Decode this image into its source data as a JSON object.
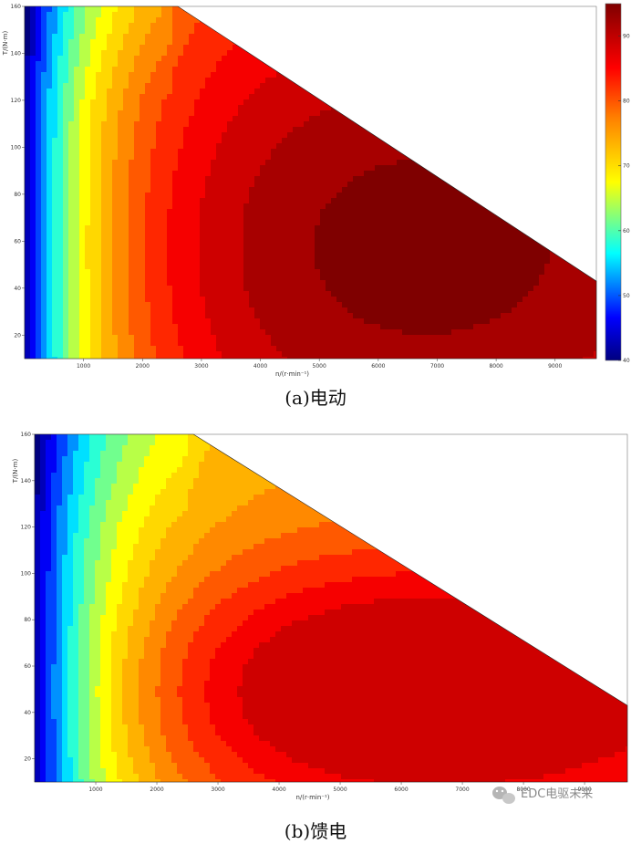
{
  "watermark": {
    "text": "EDC电驱未来"
  },
  "chart_data": [
    {
      "type": "heatmap",
      "subtype": "filled-contour efficiency map",
      "caption": "(a)电动",
      "xlabel": "n/(r·min⁻¹)",
      "ylabel": "T/(N·m)",
      "x_ticks": [
        1000,
        2000,
        3000,
        4000,
        5000,
        6000,
        7000,
        8000,
        9000
      ],
      "y_ticks": [
        20,
        40,
        60,
        80,
        100,
        120,
        140,
        160
      ],
      "xlim": [
        0,
        9700
      ],
      "ylim": [
        10,
        160
      ],
      "envelope": {
        "constant_torque": {
          "torque": 160,
          "to_speed": 2600
        },
        "max_speed": 9700,
        "torque_at_max_speed": 43
      },
      "colorbar": {
        "ticks": [
          40,
          50,
          60,
          70,
          80,
          90
        ],
        "range": [
          40,
          95
        ],
        "position": "right"
      },
      "high_efficiency_region": {
        "x": [
          3500,
          9700
        ],
        "y": [
          15,
          100
        ]
      },
      "colors": {
        "low": "#00007f",
        "mid": "#ffff00",
        "high": "#7f0000"
      }
    },
    {
      "type": "heatmap",
      "subtype": "filled-contour efficiency map",
      "caption": "(b)馈电",
      "xlabel": "n/(r·min⁻¹)",
      "ylabel": "T/(N·m)",
      "x_ticks": [
        1000,
        2000,
        3000,
        4000,
        5000,
        6000,
        7000,
        8000,
        9000
      ],
      "y_ticks": [
        20,
        40,
        60,
        80,
        100,
        120,
        140,
        160
      ],
      "xlim": [
        0,
        9700
      ],
      "ylim": [
        10,
        160
      ],
      "envelope": {
        "constant_torque": {
          "torque": 160,
          "to_speed": 2600
        },
        "max_speed": 9700,
        "torque_at_max_speed": 43
      },
      "high_efficiency_region": {
        "x": [
          4200,
          8700
        ],
        "y": [
          30,
          68
        ]
      },
      "colors": {
        "low": "#00007f",
        "mid": "#ffff00",
        "high": "#7f0000"
      }
    }
  ]
}
